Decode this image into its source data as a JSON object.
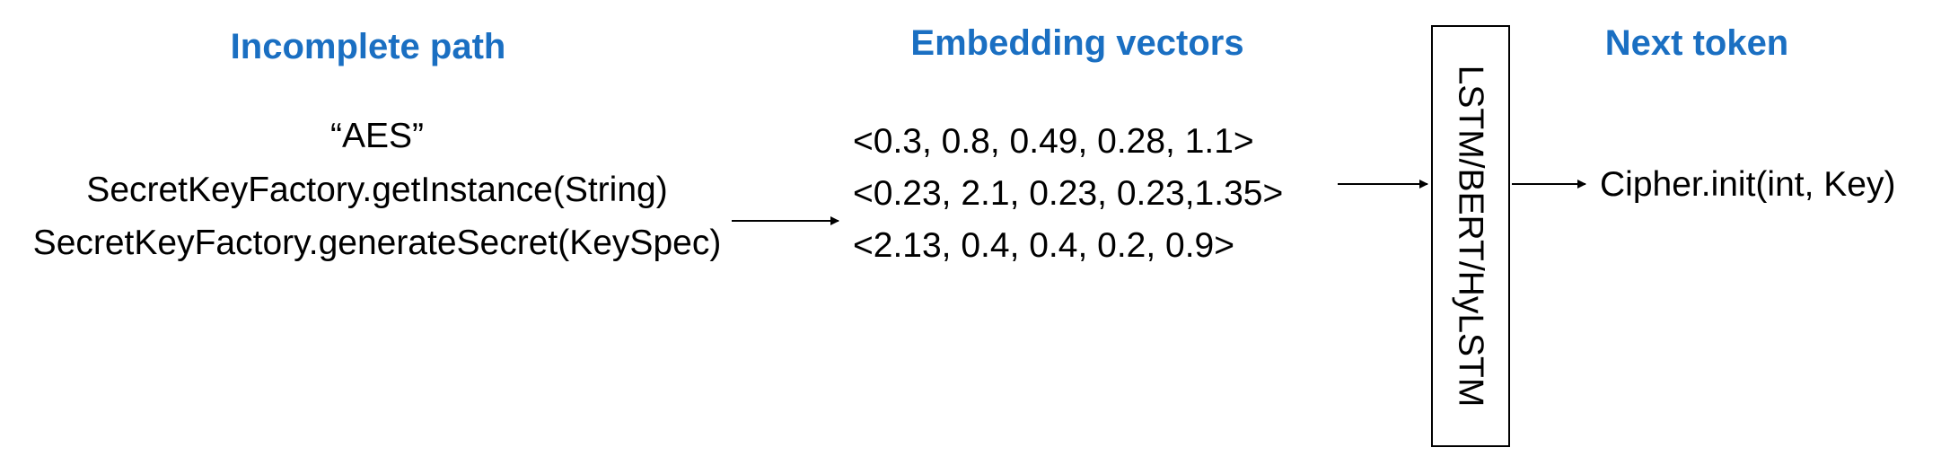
{
  "colors": {
    "heading": "#1a6fc2",
    "text": "#000000",
    "stroke": "#000000"
  },
  "headings": {
    "incomplete_path": "Incomplete path",
    "embedding_vectors": "Embedding vectors",
    "next_token": "Next token"
  },
  "path_tokens": [
    "“AES”",
    "SecretKeyFactory.getInstance(String)",
    "SecretKeyFactory.generateSecret(KeySpec)"
  ],
  "vectors": [
    "<0.3, 0.8, 0.49, 0.28, 1.1>",
    "<0.23, 2.1, 0.23, 0.23,1.35>",
    "<2.13, 0.4, 0.4, 0.2, 0.9>"
  ],
  "model_label": "LSTM/BERT/HyLSTM",
  "next_token": "Cipher.init(int, Key)"
}
